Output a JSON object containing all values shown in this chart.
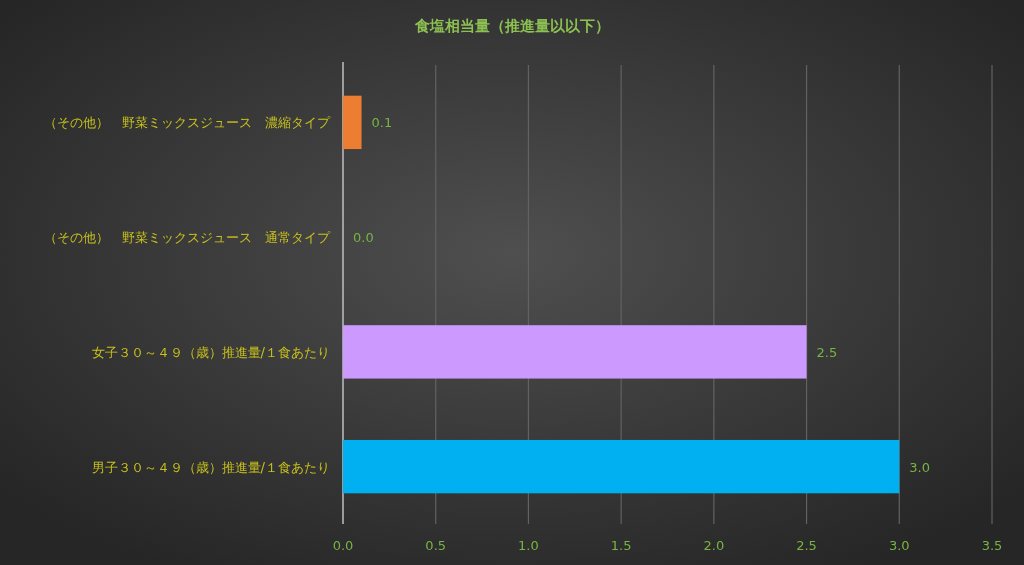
{
  "chart_data": {
    "type": "bar",
    "orientation": "horizontal",
    "title": "食塩相当量（推進量以以下）",
    "categories": [
      "（その他）　野菜ミックスジュース　濃縮タイプ",
      "（その他）　野菜ミックスジュース　通常タイプ",
      "女子３０～４９（歳）推進量/１食あたり",
      "男子３０～４９（歳）推進量/１食あたり"
    ],
    "values": [
      0.1,
      0,
      2.5,
      3
    ],
    "colors": [
      "#ed7d31",
      "#a5a5a5",
      "#cc99ff",
      "#00b0f0"
    ],
    "value_labels": [
      "0.1",
      "0.0",
      "2.5",
      "3.0"
    ],
    "xlim": [
      0,
      3.5
    ],
    "xticks": [
      {
        "value": 0,
        "label": "0.0"
      },
      0.5,
      {
        "value": 1,
        "label": "1.0"
      },
      1.5,
      {
        "value": 2,
        "label": "2.0"
      },
      2.5,
      {
        "value": 3,
        "label": "3.0"
      },
      3.5
    ],
    "grid": "x"
  }
}
